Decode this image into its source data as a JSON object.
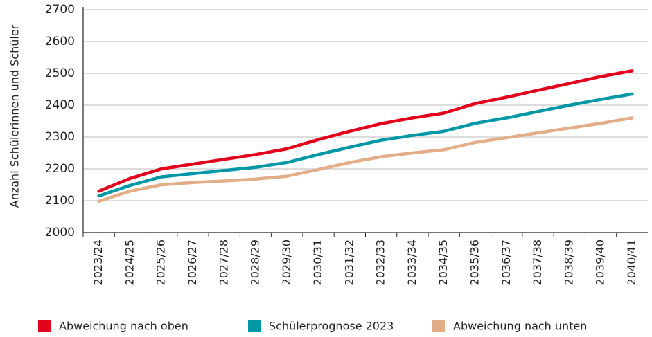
{
  "chart_data": {
    "type": "line",
    "y_label": "Anzahl Schülerinnen und Schüler",
    "categories": [
      "2023/24",
      "2024/25",
      "2025/26",
      "2026/27",
      "2027/28",
      "2028/29",
      "2029/30",
      "2030/31",
      "2031/32",
      "2032/33",
      "2033/34",
      "2034/35",
      "2035/36",
      "2036/37",
      "2037/38",
      "2038/39",
      "2039/40",
      "2040/41"
    ],
    "series": [
      {
        "name": "Abweichung nach oben",
        "color": "#e3001b",
        "values": [
          2130,
          2170,
          2200,
          2215,
          2230,
          2245,
          2263,
          2292,
          2318,
          2342,
          2360,
          2375,
          2405,
          2425,
          2447,
          2468,
          2490,
          2508
        ]
      },
      {
        "name": "Schülerprognose 2023",
        "color": "#0097a7",
        "values": [
          2115,
          2148,
          2175,
          2185,
          2195,
          2205,
          2220,
          2245,
          2268,
          2290,
          2305,
          2318,
          2343,
          2360,
          2380,
          2400,
          2418,
          2435
        ]
      },
      {
        "name": "Abweichung nach unten",
        "color": "#e3ad88",
        "values": [
          2098,
          2130,
          2150,
          2157,
          2162,
          2168,
          2177,
          2198,
          2220,
          2238,
          2250,
          2260,
          2283,
          2298,
          2313,
          2328,
          2343,
          2360
        ]
      }
    ],
    "ylim": [
      2000,
      2700
    ],
    "yticks": [
      2000,
      2100,
      2200,
      2300,
      2400,
      2500,
      2600,
      2700
    ],
    "grid": true
  }
}
